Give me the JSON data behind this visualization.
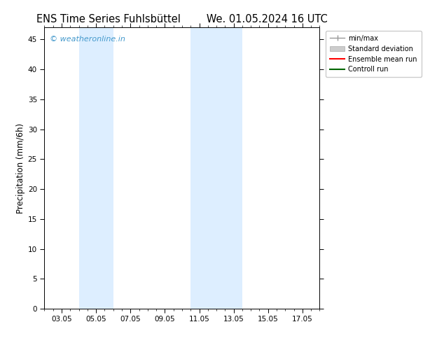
{
  "title_left": "ENS Time Series Fuhlsbüttel",
  "title_right": "We. 01.05.2024 16 UTC",
  "ylabel": "Precipitation (mm/6h)",
  "ylim": [
    0,
    47
  ],
  "yticks": [
    0,
    5,
    10,
    15,
    20,
    25,
    30,
    35,
    40,
    45
  ],
  "xtick_labels": [
    "03.05",
    "05.05",
    "07.05",
    "09.05",
    "11.05",
    "13.05",
    "15.05",
    "17.05"
  ],
  "xtick_positions": [
    3,
    5,
    7,
    9,
    11,
    13,
    15,
    17
  ],
  "xlim_start": 2,
  "xlim_end": 18,
  "shaded_bands": [
    {
      "x_start": 4.0,
      "x_end": 6.0
    },
    {
      "x_start": 10.5,
      "x_end": 13.5
    }
  ],
  "shaded_color": "#ddeeff",
  "watermark_text": "© weatheronline.in",
  "watermark_color": "#4499cc",
  "legend_entries": [
    {
      "label": "min/max",
      "color": "#aaaaaa"
    },
    {
      "label": "Standard deviation",
      "color": "#cccccc"
    },
    {
      "label": "Ensemble mean run",
      "color": "red"
    },
    {
      "label": "Controll run",
      "color": "green"
    }
  ],
  "bg_color": "#ffffff",
  "title_fontsize": 10.5,
  "tick_fontsize": 7.5,
  "ylabel_fontsize": 8.5,
  "legend_fontsize": 7,
  "watermark_fontsize": 8
}
